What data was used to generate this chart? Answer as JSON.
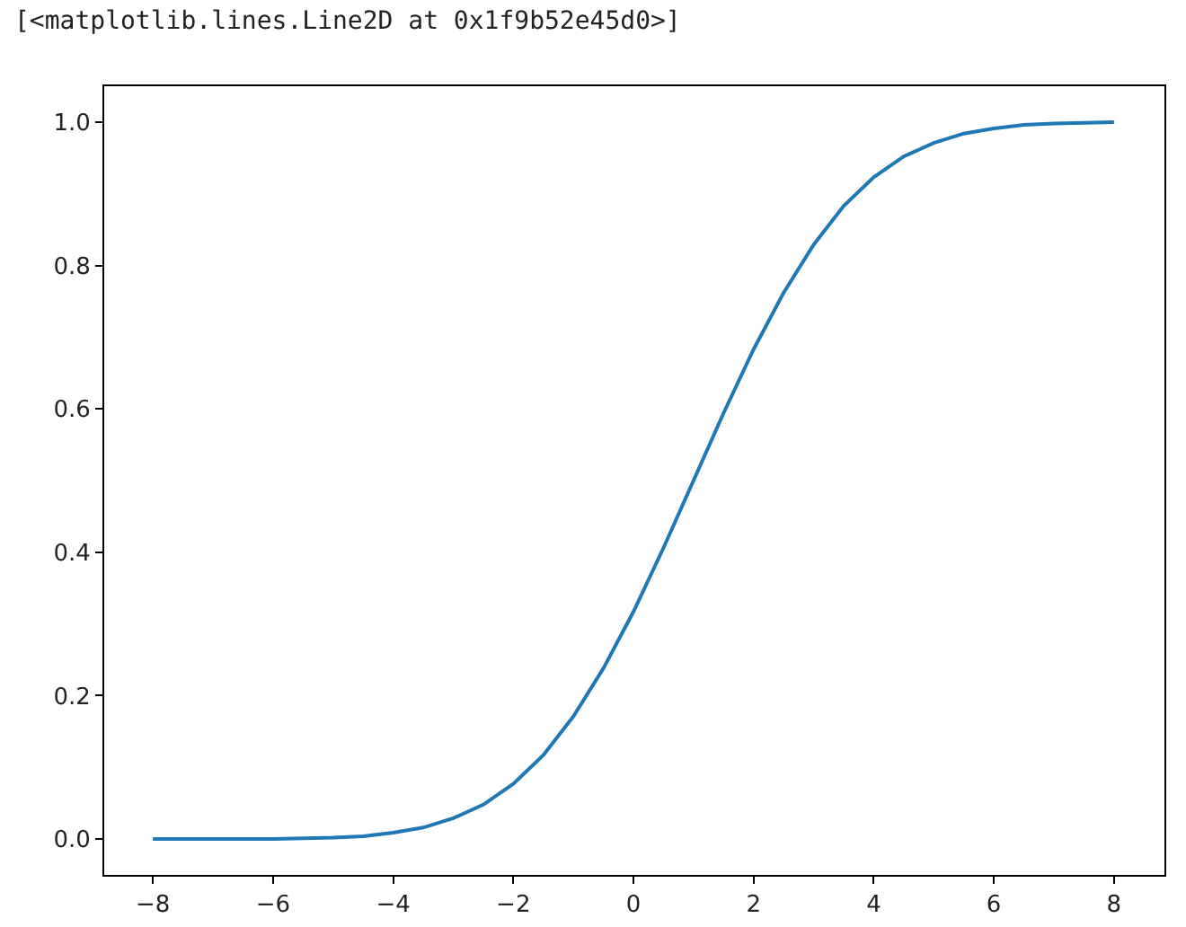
{
  "chart_data": {
    "type": "line",
    "annotations": [
      "[<matplotlib.lines.Line2D at 0x1f9b52e45d0>]"
    ],
    "x": [
      -8,
      -7.5,
      -7,
      -6.5,
      -6,
      -5.5,
      -5,
      -4.5,
      -4,
      -3.5,
      -3,
      -2.5,
      -2,
      -1.5,
      -1,
      -0.5,
      0,
      0.5,
      1,
      1.5,
      2,
      2.5,
      3,
      3.5,
      4,
      4.5,
      5,
      5.5,
      6,
      6.5,
      7,
      7.5,
      8
    ],
    "series": [
      {
        "color": "#1f77b4",
        "values": [
          0,
          0,
          0,
          0,
          0,
          0.001,
          0.002,
          0.004,
          0.009,
          0.016,
          0.029,
          0.048,
          0.077,
          0.117,
          0.171,
          0.238,
          0.317,
          0.406,
          0.5,
          0.594,
          0.683,
          0.762,
          0.829,
          0.883,
          0.923,
          0.952,
          0.971,
          0.984,
          0.991,
          0.996,
          0.998,
          0.999,
          1
        ]
      }
    ],
    "xlim": [
      -8.81,
      8.84
    ],
    "ylim": [
      -0.05,
      1.05
    ],
    "xticks": [
      {
        "value": -8,
        "label": "−8"
      },
      {
        "value": -6,
        "label": "−6"
      },
      {
        "value": -4,
        "label": "−4"
      },
      {
        "value": -2,
        "label": "−2"
      },
      0,
      2,
      4,
      6,
      8
    ],
    "yticks": [
      {
        "value": 0,
        "label": "0.0"
      },
      {
        "value": 0.2,
        "label": "0.2"
      },
      {
        "value": 0.4,
        "label": "0.4"
      },
      {
        "value": 0.6,
        "label": "0.6"
      },
      {
        "value": 0.8,
        "label": "0.8"
      },
      {
        "value": 1,
        "label": "1.0"
      }
    ],
    "grid": false,
    "legend": false,
    "marker": "none",
    "line_style": "solid"
  }
}
